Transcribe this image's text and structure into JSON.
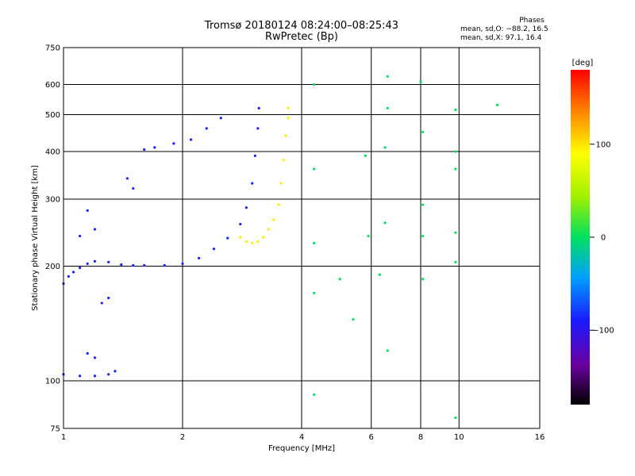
{
  "chart_data": {
    "type": "scatter",
    "title": "Tromsø 20180124 08:24:00–08:25:43",
    "subtitle": "RwPretec (Bp)",
    "xlabel": "Frequency [MHz]",
    "ylabel": "Stationary phase Virtual Height [km]",
    "x_scale": "log",
    "y_scale": "log",
    "xlim": [
      1,
      16
    ],
    "ylim": [
      75,
      750
    ],
    "x_ticks": [
      1,
      2,
      4,
      6,
      8,
      10,
      16
    ],
    "x_tick_labels": [
      "1",
      "2",
      "4",
      "6",
      "8",
      "10",
      "16"
    ],
    "y_ticks": [
      75,
      100,
      200,
      300,
      400,
      500,
      600,
      750
    ],
    "y_tick_labels": [
      "75",
      "100",
      "200",
      "300",
      "400",
      "500",
      "600",
      "750"
    ],
    "grid": true,
    "stats": {
      "heading": "Phases",
      "line_o": "mean, sd,O: −88.2, 16.5",
      "line_x": "mean, sd,X:  97.1, 16.4"
    },
    "colorbar": {
      "label": "[deg]",
      "min": -180,
      "max": 180,
      "ticks": [
        100,
        0,
        -100
      ],
      "tick_labels": [
        "100",
        "0",
        "−100"
      ]
    },
    "series": [
      {
        "mode": "O",
        "phase_deg": -88.2,
        "points": [
          [
            1.0,
            180
          ],
          [
            1.03,
            188
          ],
          [
            1.06,
            193
          ],
          [
            1.1,
            198
          ],
          [
            1.15,
            203
          ],
          [
            1.2,
            206
          ],
          [
            1.3,
            205
          ],
          [
            1.4,
            202
          ],
          [
            1.5,
            201
          ],
          [
            1.6,
            201
          ],
          [
            1.8,
            201
          ],
          [
            2.0,
            203
          ],
          [
            2.2,
            210
          ],
          [
            2.4,
            222
          ],
          [
            2.6,
            237
          ],
          [
            2.8,
            258
          ],
          [
            2.9,
            285
          ],
          [
            3.0,
            330
          ],
          [
            3.05,
            390
          ],
          [
            3.1,
            460
          ],
          [
            3.12,
            520
          ],
          [
            1.0,
            104
          ],
          [
            1.1,
            103
          ],
          [
            1.2,
            103
          ],
          [
            1.3,
            104
          ],
          [
            1.35,
            106
          ],
          [
            1.2,
            115
          ],
          [
            1.15,
            118
          ],
          [
            1.6,
            405
          ],
          [
            1.7,
            410
          ],
          [
            1.9,
            420
          ],
          [
            2.1,
            430
          ],
          [
            2.3,
            460
          ],
          [
            2.5,
            490
          ],
          [
            1.1,
            240
          ],
          [
            1.2,
            250
          ],
          [
            1.15,
            280
          ],
          [
            1.25,
            160
          ],
          [
            1.3,
            165
          ],
          [
            1.45,
            340
          ],
          [
            1.5,
            320
          ]
        ]
      },
      {
        "mode": "X",
        "phase_deg": 97.1,
        "points": [
          [
            2.8,
            238
          ],
          [
            2.9,
            232
          ],
          [
            3.0,
            230
          ],
          [
            3.1,
            232
          ],
          [
            3.2,
            238
          ],
          [
            3.3,
            250
          ],
          [
            3.4,
            265
          ],
          [
            3.5,
            290
          ],
          [
            3.55,
            330
          ],
          [
            3.6,
            380
          ],
          [
            3.65,
            440
          ],
          [
            3.7,
            490
          ],
          [
            3.7,
            520
          ]
        ]
      },
      {
        "mode": "scattered",
        "phase_deg": 0,
        "points": [
          [
            4.3,
            600
          ],
          [
            4.3,
            360
          ],
          [
            4.3,
            230
          ],
          [
            4.3,
            170
          ],
          [
            4.3,
            92
          ],
          [
            5.0,
            185
          ],
          [
            5.4,
            145
          ],
          [
            5.8,
            390
          ],
          [
            5.9,
            240
          ],
          [
            6.3,
            190
          ],
          [
            6.5,
            260
          ],
          [
            6.5,
            410
          ],
          [
            6.6,
            120
          ],
          [
            6.6,
            520
          ],
          [
            6.6,
            630
          ],
          [
            8.0,
            610
          ],
          [
            8.1,
            290
          ],
          [
            8.1,
            240
          ],
          [
            8.1,
            185
          ],
          [
            8.1,
            450
          ],
          [
            9.8,
            400
          ],
          [
            9.8,
            360
          ],
          [
            9.8,
            245
          ],
          [
            9.8,
            205
          ],
          [
            9.8,
            515
          ],
          [
            9.8,
            80
          ],
          [
            12.5,
            530
          ]
        ]
      }
    ]
  }
}
